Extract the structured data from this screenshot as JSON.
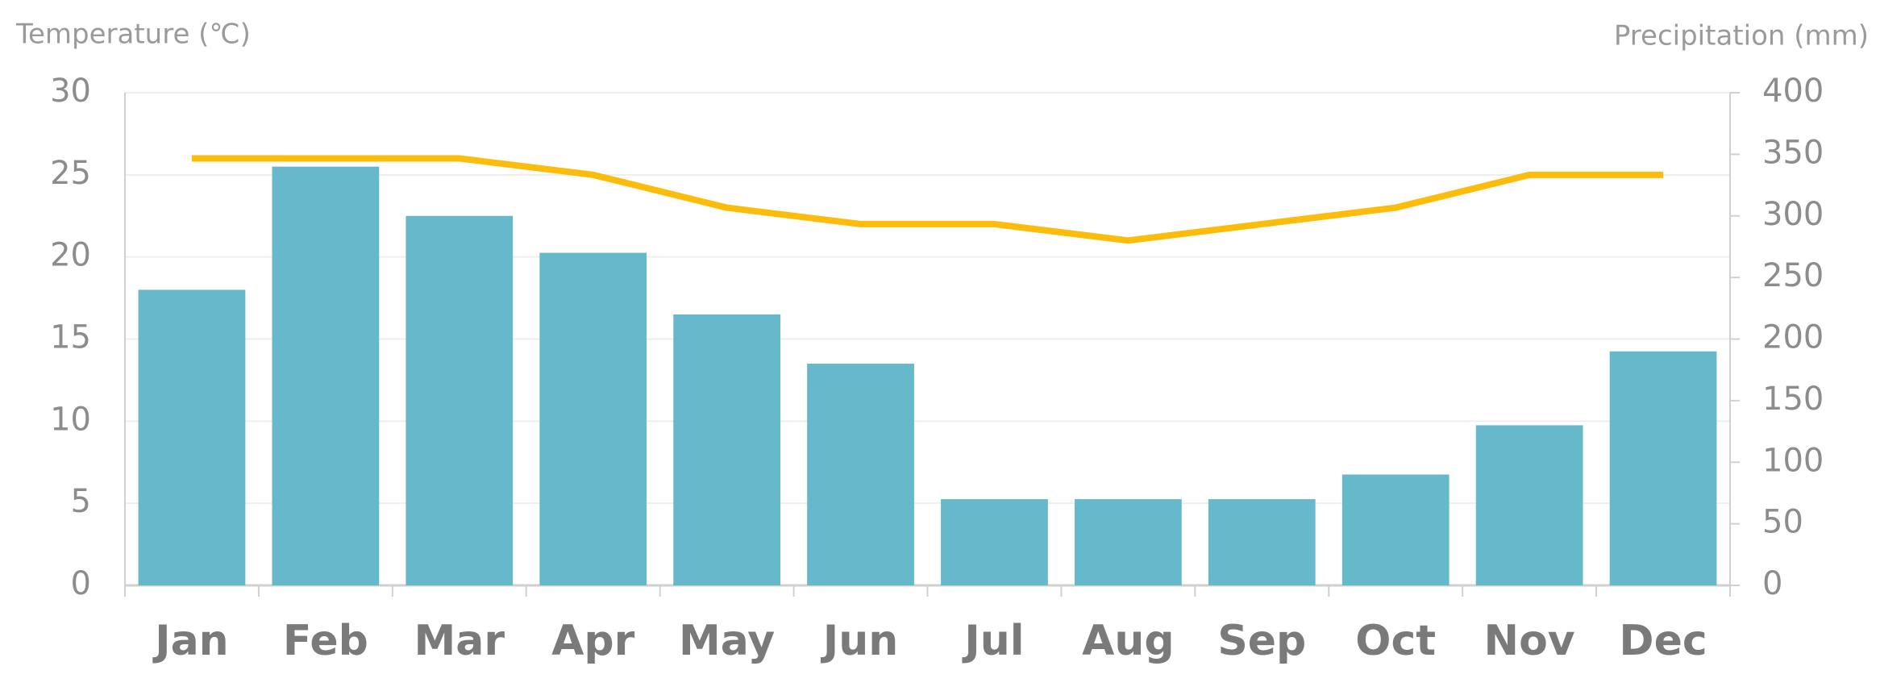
{
  "chart_data": {
    "type": "bar",
    "y_label": "Temperature (℃)",
    "y2_label": "Precipitation (mm)",
    "categories": [
      "Jan",
      "Feb",
      "Mar",
      "Apr",
      "May",
      "Jun",
      "Jul",
      "Aug",
      "Sep",
      "Oct",
      "Nov",
      "Dec"
    ],
    "series": [
      {
        "type": "bar",
        "axis": "y2",
        "color": "#66b8cb",
        "values": [
          240,
          340,
          300,
          270,
          220,
          180,
          70,
          70,
          70,
          90,
          130,
          190
        ]
      },
      {
        "type": "line",
        "color": "#fbbc0c",
        "values": [
          26,
          26,
          26,
          25,
          23,
          22,
          22,
          21,
          22,
          23,
          25,
          25
        ]
      }
    ],
    "ylim": [
      0,
      30
    ],
    "yticks": [
      0,
      5,
      10,
      15,
      20,
      25,
      30
    ],
    "y2lim": [
      0,
      400
    ],
    "y2ticks": [
      0,
      50,
      100,
      150,
      200,
      250,
      300,
      350,
      400
    ],
    "grid": true
  }
}
